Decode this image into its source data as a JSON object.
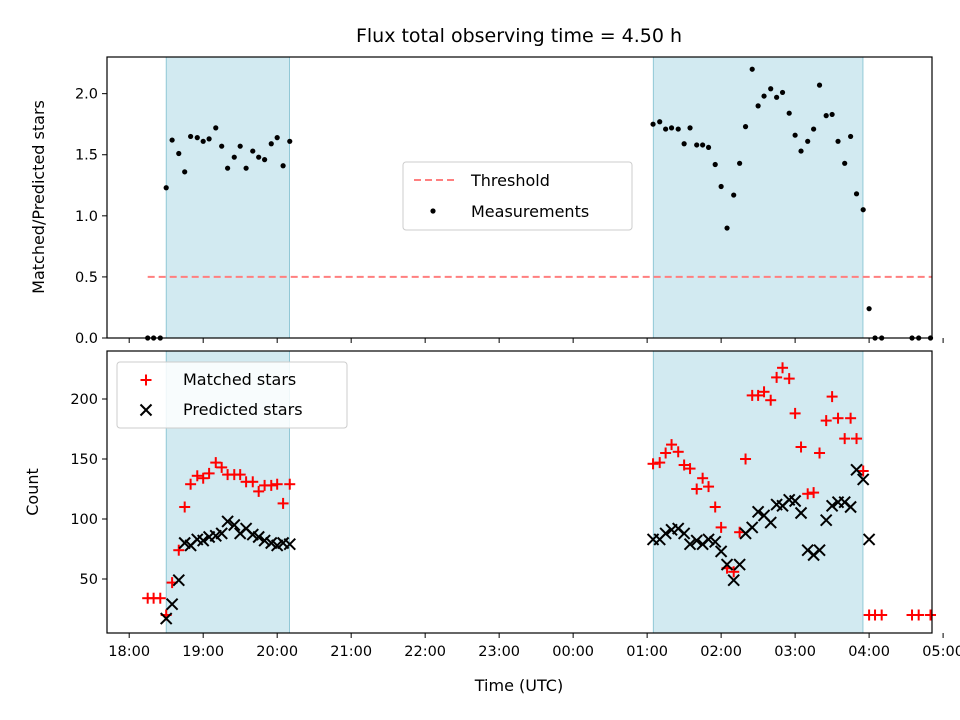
{
  "chart_data": [
    {
      "type": "scatter",
      "title": "Flux total observing time = 4.50 h",
      "xlabel": "",
      "ylabel": "Matched/Predicted stars",
      "xlim": [
        -0.3,
        10.85
      ],
      "ylim": [
        0.0,
        2.3
      ],
      "yticks": [
        0.0,
        0.5,
        1.0,
        1.5,
        2.0
      ],
      "ytick_labels": [
        "0.0",
        "0.5",
        "1.0",
        "1.5",
        "2.0"
      ],
      "xticks": [
        0,
        1,
        2,
        3,
        4,
        5,
        6,
        7,
        8,
        9,
        10,
        11
      ],
      "xtick_labels": [
        "",
        "",
        "",
        "",
        "",
        "",
        "",
        "",
        "",
        "",
        "",
        ""
      ],
      "shaded_ranges": [
        [
          0.5,
          2.167
        ],
        [
          7.083,
          9.917
        ]
      ],
      "shade_color": "#add8e6",
      "legend": {
        "position": "center",
        "entries": [
          {
            "label": "Threshold",
            "style": "dashed-line",
            "color": "#ff7f7f"
          },
          {
            "label": "Measurements",
            "style": "dot",
            "color": "#000000"
          }
        ]
      },
      "threshold": {
        "name": "Threshold",
        "y": 0.5,
        "x_range": [
          0.25,
          10.85
        ],
        "color": "#ff7f7f"
      },
      "series": [
        {
          "name": "Measurements",
          "color": "#000000",
          "marker": "dot",
          "points": [
            [
              0.25,
              0.0
            ],
            [
              0.33,
              0.0
            ],
            [
              0.42,
              0.0
            ],
            [
              0.5,
              1.23
            ],
            [
              0.58,
              1.62
            ],
            [
              0.67,
              1.51
            ],
            [
              0.75,
              1.36
            ],
            [
              0.83,
              1.65
            ],
            [
              0.92,
              1.64
            ],
            [
              1.0,
              1.61
            ],
            [
              1.08,
              1.63
            ],
            [
              1.17,
              1.72
            ],
            [
              1.25,
              1.57
            ],
            [
              1.33,
              1.39
            ],
            [
              1.42,
              1.48
            ],
            [
              1.5,
              1.57
            ],
            [
              1.58,
              1.39
            ],
            [
              1.67,
              1.53
            ],
            [
              1.75,
              1.48
            ],
            [
              1.83,
              1.46
            ],
            [
              1.92,
              1.59
            ],
            [
              2.0,
              1.64
            ],
            [
              2.08,
              1.41
            ],
            [
              2.17,
              1.61
            ],
            [
              7.08,
              1.75
            ],
            [
              7.17,
              1.77
            ],
            [
              7.25,
              1.71
            ],
            [
              7.33,
              1.72
            ],
            [
              7.42,
              1.71
            ],
            [
              7.5,
              1.59
            ],
            [
              7.58,
              1.72
            ],
            [
              7.67,
              1.58
            ],
            [
              7.75,
              1.58
            ],
            [
              7.83,
              1.56
            ],
            [
              7.92,
              1.42
            ],
            [
              8.0,
              1.24
            ],
            [
              8.08,
              0.9
            ],
            [
              8.17,
              1.17
            ],
            [
              8.25,
              1.43
            ],
            [
              8.33,
              1.73
            ],
            [
              8.42,
              2.2
            ],
            [
              8.5,
              1.9
            ],
            [
              8.58,
              1.98
            ],
            [
              8.67,
              2.04
            ],
            [
              8.75,
              1.97
            ],
            [
              8.83,
              2.01
            ],
            [
              8.92,
              1.84
            ],
            [
              9.0,
              1.66
            ],
            [
              9.08,
              1.53
            ],
            [
              9.17,
              1.61
            ],
            [
              9.25,
              1.71
            ],
            [
              9.33,
              2.07
            ],
            [
              9.42,
              1.82
            ],
            [
              9.5,
              1.83
            ],
            [
              9.58,
              1.61
            ],
            [
              9.67,
              1.43
            ],
            [
              9.75,
              1.65
            ],
            [
              9.83,
              1.18
            ],
            [
              9.92,
              1.05
            ],
            [
              10.0,
              0.24
            ],
            [
              10.08,
              0.0
            ],
            [
              10.17,
              0.0
            ],
            [
              10.58,
              0.0
            ],
            [
              10.67,
              0.0
            ],
            [
              10.83,
              0.0
            ]
          ]
        }
      ]
    },
    {
      "type": "scatter",
      "title": "",
      "xlabel": "Time (UTC)",
      "ylabel": "Count",
      "xlim": [
        -0.3,
        10.85
      ],
      "ylim": [
        5,
        240
      ],
      "yticks": [
        50,
        100,
        150,
        200
      ],
      "ytick_labels": [
        "50",
        "100",
        "150",
        "200"
      ],
      "xticks": [
        0,
        1,
        2,
        3,
        4,
        5,
        6,
        7,
        8,
        9,
        10,
        11
      ],
      "xtick_labels": [
        "18:00",
        "19:00",
        "20:00",
        "21:00",
        "22:00",
        "23:00",
        "00:00",
        "01:00",
        "02:00",
        "03:00",
        "04:00",
        "05:00"
      ],
      "shaded_ranges": [
        [
          0.5,
          2.167
        ],
        [
          7.083,
          9.917
        ]
      ],
      "shade_color": "#add8e6",
      "legend": {
        "position": "upper left",
        "entries": [
          {
            "label": "Matched stars",
            "style": "plus",
            "color": "#ff0000"
          },
          {
            "label": "Predicted stars",
            "style": "x",
            "color": "#000000"
          }
        ]
      },
      "series": [
        {
          "name": "Matched stars",
          "color": "#ff0000",
          "marker": "plus",
          "points": [
            [
              0.25,
              34
            ],
            [
              0.33,
              34
            ],
            [
              0.42,
              34
            ],
            [
              0.5,
              20
            ],
            [
              0.58,
              47
            ],
            [
              0.67,
              74
            ],
            [
              0.75,
              110
            ],
            [
              0.83,
              129
            ],
            [
              0.92,
              136
            ],
            [
              1.0,
              134
            ],
            [
              1.08,
              138
            ],
            [
              1.17,
              147
            ],
            [
              1.25,
              143
            ],
            [
              1.33,
              137
            ],
            [
              1.42,
              137
            ],
            [
              1.5,
              137
            ],
            [
              1.58,
              131
            ],
            [
              1.67,
              131
            ],
            [
              1.75,
              123
            ],
            [
              1.83,
              128
            ],
            [
              1.92,
              128
            ],
            [
              2.0,
              129
            ],
            [
              2.08,
              113
            ],
            [
              2.17,
              129
            ],
            [
              7.08,
              146
            ],
            [
              7.17,
              147
            ],
            [
              7.25,
              155
            ],
            [
              7.33,
              162
            ],
            [
              7.42,
              156
            ],
            [
              7.5,
              145
            ],
            [
              7.58,
              142
            ],
            [
              7.67,
              125
            ],
            [
              7.75,
              134
            ],
            [
              7.83,
              127
            ],
            [
              7.92,
              110
            ],
            [
              8.0,
              93
            ],
            [
              8.08,
              59
            ],
            [
              8.17,
              56
            ],
            [
              8.25,
              89
            ],
            [
              8.33,
              150
            ],
            [
              8.42,
              203
            ],
            [
              8.5,
              203
            ],
            [
              8.58,
              206
            ],
            [
              8.67,
              199
            ],
            [
              8.75,
              218
            ],
            [
              8.83,
              226
            ],
            [
              8.92,
              217
            ],
            [
              9.0,
              188
            ],
            [
              9.08,
              160
            ],
            [
              9.17,
              121
            ],
            [
              9.25,
              122
            ],
            [
              9.33,
              155
            ],
            [
              9.42,
              182
            ],
            [
              9.5,
              202
            ],
            [
              9.58,
              184
            ],
            [
              9.67,
              167
            ],
            [
              9.75,
              184
            ],
            [
              9.83,
              167
            ],
            [
              9.92,
              140
            ],
            [
              10.0,
              20
            ],
            [
              10.08,
              20
            ],
            [
              10.17,
              20
            ],
            [
              10.58,
              20
            ],
            [
              10.67,
              20
            ],
            [
              10.83,
              20
            ]
          ]
        },
        {
          "name": "Predicted stars",
          "color": "#000000",
          "marker": "x",
          "points": [
            [
              0.5,
              17
            ],
            [
              0.58,
              29
            ],
            [
              0.67,
              49
            ],
            [
              0.75,
              80
            ],
            [
              0.83,
              78
            ],
            [
              0.92,
              83
            ],
            [
              1.0,
              82
            ],
            [
              1.08,
              85
            ],
            [
              1.17,
              86
            ],
            [
              1.25,
              88
            ],
            [
              1.33,
              98
            ],
            [
              1.42,
              95
            ],
            [
              1.5,
              88
            ],
            [
              1.58,
              92
            ],
            [
              1.67,
              87
            ],
            [
              1.75,
              85
            ],
            [
              1.83,
              82
            ],
            [
              1.92,
              80
            ],
            [
              2.0,
              78
            ],
            [
              2.08,
              80
            ],
            [
              2.17,
              79
            ],
            [
              7.08,
              83
            ],
            [
              7.17,
              83
            ],
            [
              7.25,
              88
            ],
            [
              7.33,
              91
            ],
            [
              7.42,
              92
            ],
            [
              7.5,
              88
            ],
            [
              7.58,
              79
            ],
            [
              7.67,
              82
            ],
            [
              7.75,
              79
            ],
            [
              7.83,
              83
            ],
            [
              7.92,
              81
            ],
            [
              8.0,
              73
            ],
            [
              8.08,
              62
            ],
            [
              8.17,
              49
            ],
            [
              8.25,
              62
            ],
            [
              8.33,
              88
            ],
            [
              8.42,
              93
            ],
            [
              8.5,
              106
            ],
            [
              8.58,
              103
            ],
            [
              8.67,
              97
            ],
            [
              8.75,
              112
            ],
            [
              8.83,
              111
            ],
            [
              8.92,
              116
            ],
            [
              9.0,
              115
            ],
            [
              9.08,
              105
            ],
            [
              9.17,
              74
            ],
            [
              9.25,
              70
            ],
            [
              9.33,
              74
            ],
            [
              9.42,
              99
            ],
            [
              9.5,
              111
            ],
            [
              9.58,
              114
            ],
            [
              9.67,
              114
            ],
            [
              9.75,
              110
            ],
            [
              9.83,
              141
            ],
            [
              9.92,
              133
            ],
            [
              10.0,
              83
            ]
          ]
        }
      ]
    }
  ]
}
